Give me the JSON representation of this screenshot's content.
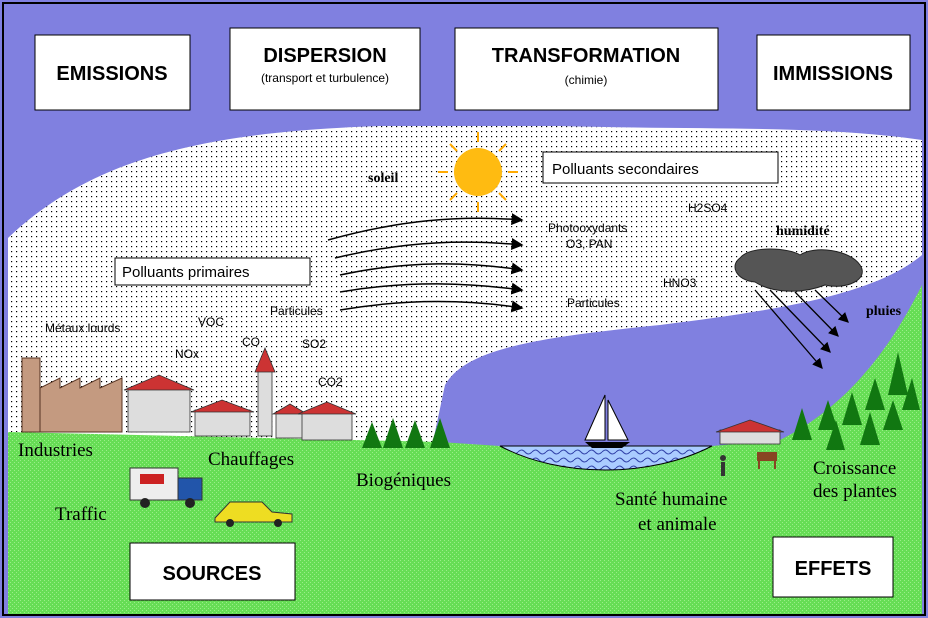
{
  "header": {
    "emissions": "EMISSIONS",
    "dispersion": {
      "title": "DISPERSION",
      "subtitle": "(transport et turbulence)"
    },
    "transformation": {
      "title": "TRANSFORMATION",
      "subtitle": "(chimie)"
    },
    "immissions": "IMMISSIONS"
  },
  "atmosphere": {
    "sun": "soleil",
    "secondary": "Polluants secondaires",
    "primary": "Polluants primaires",
    "secondary_pollutants": [
      "Photooxydants",
      "O3, PAN",
      "H2SO4",
      "HNO3",
      "Particules"
    ],
    "humidity": "humidité",
    "rain": "pluies",
    "primary_pollutants": [
      "Métaux lourds",
      "VOC",
      "NOx",
      "CO",
      "Particules",
      "SO2",
      "CO2"
    ]
  },
  "sources": {
    "title": "SOURCES",
    "items": [
      "Industries",
      "Chauffages",
      "Traffic",
      "Biogéniques"
    ]
  },
  "effects": {
    "title": "EFFETS",
    "items": [
      [
        "Santé humaine",
        "et animale"
      ],
      [
        "Croissance",
        "des plantes"
      ]
    ]
  }
}
